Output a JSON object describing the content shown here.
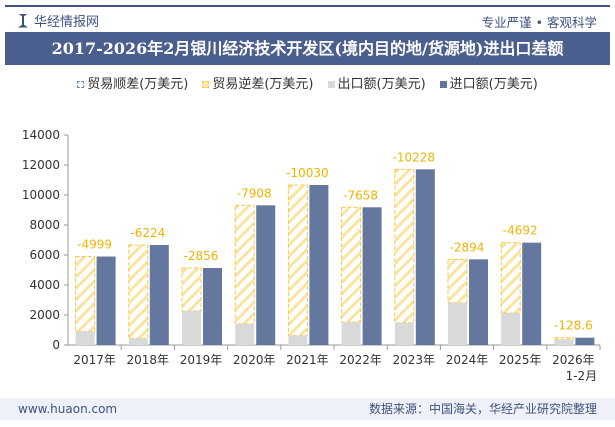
{
  "header": {
    "brand": "华经情报网",
    "slogan": "专业严谨 • 客观科学"
  },
  "colors": {
    "import": "#63779f",
    "export": "#d9d9d9",
    "deficit": "#f7c948",
    "surplus": "#5b7fb0",
    "banner": "#4b5f8e"
  },
  "footer": {
    "website": "www.huaon.com",
    "source": "数据来源：中国海关，华经产业研究院整理"
  },
  "chart_data": {
    "type": "bar",
    "title": "2017-2026年2月银川经济技术开发区(境内目的地/货源地)进出口差额",
    "legend": [
      "贸易顺差(万美元)",
      "贸易逆差(万美元)",
      "出口额(万美元)",
      "进口额(万美元)"
    ],
    "legend_position": "top",
    "categories": [
      "2017年",
      "2018年",
      "2019年",
      "2020年",
      "2021年",
      "2022年",
      "2023年",
      "2024年",
      "2025年",
      "2026年\n1-2月"
    ],
    "ylim": [
      0,
      14000
    ],
    "yticks": [
      0,
      2000,
      4000,
      6000,
      8000,
      10000,
      12000,
      14000
    ],
    "series": [
      {
        "name": "出口额(万美元)",
        "values": [
          900,
          443,
          2277,
          1405,
          637,
          1522,
          1483,
          2817,
          2130,
          360
        ]
      },
      {
        "name": "进口额(万美元)",
        "values": [
          5899,
          6667,
          5133,
          9313,
          10667,
          9180,
          11711,
          5711,
          6822,
          489
        ]
      },
      {
        "name": "贸易逆差(万美元)",
        "values": [
          -4999,
          -6224,
          -2856,
          -7908,
          -10030,
          -7658,
          -10228,
          -2894,
          -4692,
          -128.6
        ]
      }
    ],
    "data_labels": [
      "-4999",
      "-6224",
      "-2856",
      "-7908",
      "-10030",
      "-7658",
      "-10228",
      "-2894",
      "-4692",
      "-128.6"
    ]
  }
}
